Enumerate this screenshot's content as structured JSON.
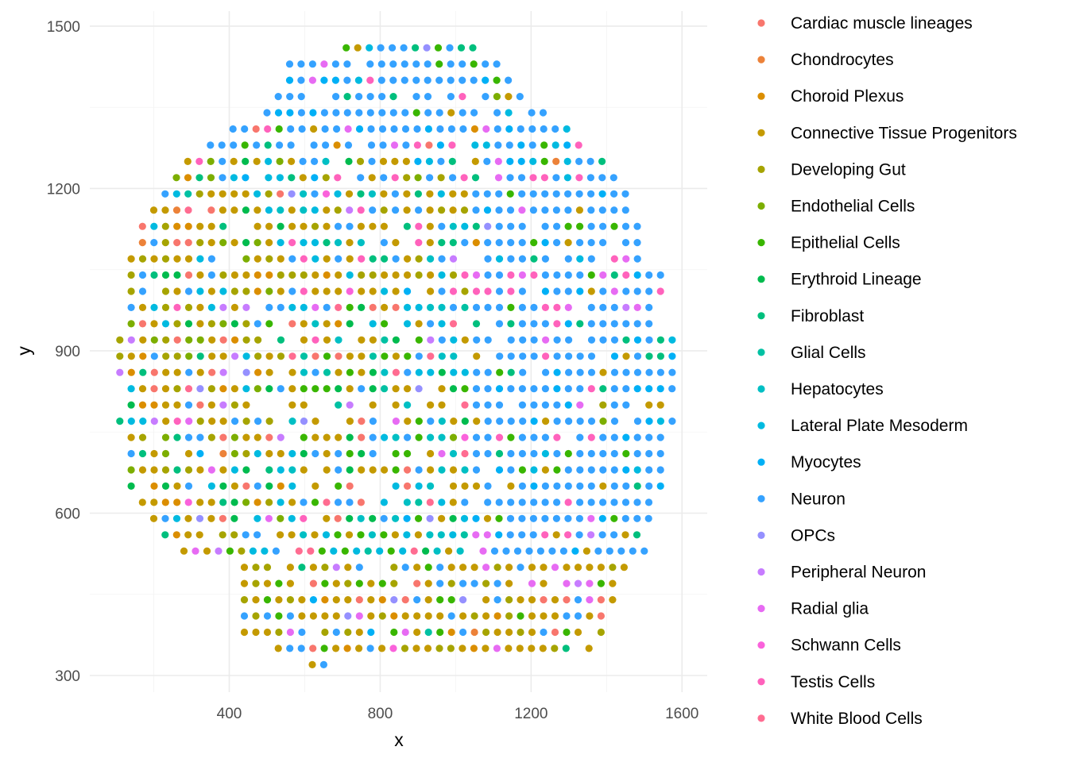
{
  "chart_data": {
    "type": "scatter",
    "title": "",
    "xlabel": "x",
    "ylabel": "y",
    "xlim": [
      80,
      1640
    ],
    "ylim": [
      268,
      1500
    ],
    "x_ticks": [
      400,
      800,
      1200,
      1600
    ],
    "y_ticks": [
      300,
      600,
      900,
      1200,
      1500
    ],
    "grid": true,
    "legend_position": "right",
    "categories": [
      {
        "name": "Cardiac muscle lineages",
        "color": "#F8766D"
      },
      {
        "name": "Chondrocytes",
        "color": "#EC8239"
      },
      {
        "name": "Choroid Plexus",
        "color": "#DB8E00"
      },
      {
        "name": "Connective Tissue Progenitors",
        "color": "#C49A00"
      },
      {
        "name": "Developing Gut",
        "color": "#A6A400"
      },
      {
        "name": "Endothelial Cells",
        "color": "#7CAE00"
      },
      {
        "name": "Epithelial Cells",
        "color": "#39B600"
      },
      {
        "name": "Erythroid Lineage",
        "color": "#00BB4E"
      },
      {
        "name": "Fibroblast",
        "color": "#00BF7D"
      },
      {
        "name": "Glial Cells",
        "color": "#00C1A3"
      },
      {
        "name": "Hepatocytes",
        "color": "#00BFC4"
      },
      {
        "name": "Lateral Plate Mesoderm",
        "color": "#00BAE0"
      },
      {
        "name": "Myocytes",
        "color": "#00B0F6"
      },
      {
        "name": "Neuron",
        "color": "#35A2FF"
      },
      {
        "name": "OPCs",
        "color": "#9590FF"
      },
      {
        "name": "Peripheral Neuron",
        "color": "#C77CFF"
      },
      {
        "name": "Radial glia",
        "color": "#E76BF3"
      },
      {
        "name": "Schwann Cells",
        "color": "#FA62DB"
      },
      {
        "name": "Testis Cells",
        "color": "#FF62BC"
      },
      {
        "name": "White Blood Cells",
        "color": "#FF6C91"
      }
    ],
    "grid_spacing": {
      "x": 30.5,
      "y": 30
    },
    "rows": [
      {
        "y": 320,
        "x_range": [
          620,
          660
        ]
      },
      {
        "y": 350,
        "x_range": [
          530,
          1360
        ]
      },
      {
        "y": 380,
        "x_range": [
          440,
          1390
        ]
      },
      {
        "y": 410,
        "x_range": [
          440,
          1420
        ]
      },
      {
        "y": 440,
        "x_range": [
          440,
          1420
        ]
      },
      {
        "y": 470,
        "x_range": [
          440,
          1420
        ]
      },
      {
        "y": 500,
        "x_range": [
          440,
          1480
        ]
      },
      {
        "y": 530,
        "x_range": [
          280,
          1510
        ]
      },
      {
        "y": 560,
        "x_range": [
          230,
          1510
        ]
      },
      {
        "y": 590,
        "x_range": [
          200,
          1540
        ]
      },
      {
        "y": 620,
        "x_range": [
          170,
          1540
        ]
      },
      {
        "y": 650,
        "x_range": [
          140,
          1570
        ]
      },
      {
        "y": 680,
        "x_range": [
          140,
          1570
        ]
      },
      {
        "y": 710,
        "x_range": [
          140,
          1570
        ]
      },
      {
        "y": 740,
        "x_range": [
          140,
          1570
        ]
      },
      {
        "y": 770,
        "x_range": [
          110,
          1600
        ]
      },
      {
        "y": 800,
        "x_range": [
          140,
          1570
        ]
      },
      {
        "y": 830,
        "x_range": [
          140,
          1600
        ]
      },
      {
        "y": 860,
        "x_range": [
          110,
          1600
        ]
      },
      {
        "y": 890,
        "x_range": [
          110,
          1600
        ]
      },
      {
        "y": 920,
        "x_range": [
          110,
          1600
        ]
      },
      {
        "y": 950,
        "x_range": [
          140,
          1570
        ]
      },
      {
        "y": 980,
        "x_range": [
          140,
          1570
        ]
      },
      {
        "y": 1010,
        "x_range": [
          140,
          1570
        ]
      },
      {
        "y": 1040,
        "x_range": [
          140,
          1570
        ]
      },
      {
        "y": 1070,
        "x_range": [
          140,
          1540
        ]
      },
      {
        "y": 1100,
        "x_range": [
          170,
          1510
        ]
      },
      {
        "y": 1130,
        "x_range": [
          170,
          1510
        ]
      },
      {
        "y": 1160,
        "x_range": [
          200,
          1480
        ]
      },
      {
        "y": 1190,
        "x_range": [
          230,
          1450
        ]
      },
      {
        "y": 1220,
        "x_range": [
          260,
          1420
        ]
      },
      {
        "y": 1250,
        "x_range": [
          290,
          1390
        ]
      },
      {
        "y": 1280,
        "x_range": [
          350,
          1330
        ]
      },
      {
        "y": 1310,
        "x_range": [
          410,
          1300
        ]
      },
      {
        "y": 1340,
        "x_range": [
          500,
          1240
        ]
      },
      {
        "y": 1370,
        "x_range": [
          530,
          1180
        ]
      },
      {
        "y": 1400,
        "x_range": [
          560,
          1150
        ]
      },
      {
        "y": 1430,
        "x_range": [
          560,
          1120
        ]
      },
      {
        "y": 1460,
        "x_range": [
          710,
          1060
        ]
      }
    ]
  }
}
